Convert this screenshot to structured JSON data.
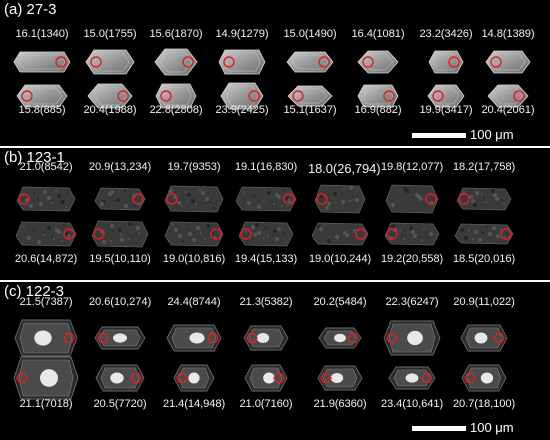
{
  "panels": [
    {
      "title": "(a) 27-3",
      "style": "a",
      "top_labels": [
        "16.1(1340)",
        "15.0(1755)",
        "15.6(1870)",
        "14.9(1279)",
        "15.0(1490)",
        "16.4(1081)",
        "23.2(3426)",
        "14.8(1389)"
      ],
      "bottom_labels": [
        "15.8(885)",
        "20.4(1988)",
        "22.8(2808)",
        "23.9(2425)",
        "15.1(1637)",
        "16.9(882)",
        "19.9(3417)",
        "20.4(2061)"
      ],
      "scale": "100 μm"
    },
    {
      "title": "(b) 123-1",
      "style": "b",
      "top_labels": [
        "21.0(8542)",
        "20.9(13,234)",
        "19.7(9353)",
        "19.1(16,830)",
        "18.0(26,794)",
        "19.8(12,077)",
        "18.2(17,758)"
      ],
      "bottom_labels": [
        "20.6(14,872)",
        "19.5(10,110)",
        "19.0(10,816)",
        "19.4(15,133)",
        "19.0(10,244)",
        "19.2(20,558)",
        "18.5(20,016)"
      ],
      "scale": ""
    },
    {
      "title": "(c) 122-3",
      "style": "c",
      "top_labels": [
        "21.5(7387)",
        "20.6(10,274)",
        "24.4(8744)",
        "21.3(5382)",
        "20.2(5484)",
        "22.3(6247)",
        "20.9(11,022)"
      ],
      "bottom_labels": [
        "21.1(7018)",
        "20.5(7720)",
        "21.4(14,948)",
        "21.0(7160)",
        "21.9(6360)",
        "23.4(10,641)",
        "20.7(18,100)"
      ],
      "scale": "100 μm"
    }
  ],
  "colors": {
    "background": "#000000",
    "text": "#ffffff",
    "spot": "#e02020",
    "gap": "#ffffff"
  }
}
